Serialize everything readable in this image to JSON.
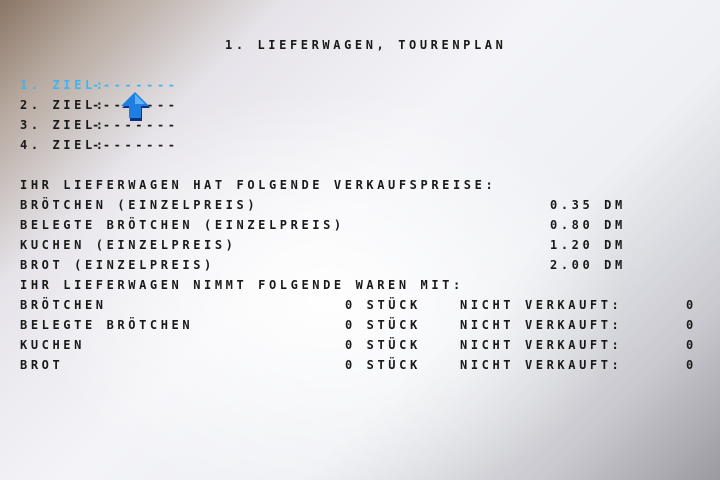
{
  "title": "1. LIEFERWAGEN, TOURENPLAN",
  "ziele": [
    {
      "label": "1. ZIEL:",
      "value": "--------",
      "selected": true
    },
    {
      "label": "2. ZIEL:",
      "value": "--------",
      "selected": false
    },
    {
      "label": "3. ZIEL:",
      "value": "--------",
      "selected": false
    },
    {
      "label": "4. ZIEL:",
      "value": "--------",
      "selected": false
    }
  ],
  "prices_heading": "IHR LIEFERWAGEN HAT FOLGENDE VERKAUFSPREISE:",
  "prices": [
    {
      "item": "BRÖTCHEN (EINZELPREIS)",
      "price": "0.35 DM"
    },
    {
      "item": "BELEGTE BRÖTCHEN (EINZELPREIS)",
      "price": "0.80 DM"
    },
    {
      "item": "KUCHEN (EINZELPREIS)",
      "price": "1.20 DM"
    },
    {
      "item": "BROT (EINZELPREIS)",
      "price": "2.00 DM"
    }
  ],
  "goods_heading": "IHR LIEFERWAGEN NIMMT FOLGENDE WAREN MIT:",
  "goods": [
    {
      "item": "BRÖTCHEN",
      "qty": "0 STÜCK",
      "unsold_label": "NICHT VERKAUFT:",
      "unsold": "0"
    },
    {
      "item": "BELEGTE BRÖTCHEN",
      "qty": "0 STÜCK",
      "unsold_label": "NICHT VERKAUFT:",
      "unsold": "0"
    },
    {
      "item": "KUCHEN",
      "qty": "0 STÜCK",
      "unsold_label": "NICHT VERKAUFT:",
      "unsold": "0"
    },
    {
      "item": "BROT",
      "qty": "0 STÜCK",
      "unsold_label": "NICHT VERKAUFT:",
      "unsold": "0"
    }
  ],
  "colors": {
    "highlight": "#3fb4f0",
    "text": "#1a1a1a",
    "cursor": "#1e7fe0"
  },
  "cursor_icon": "arrow-up-cursor"
}
